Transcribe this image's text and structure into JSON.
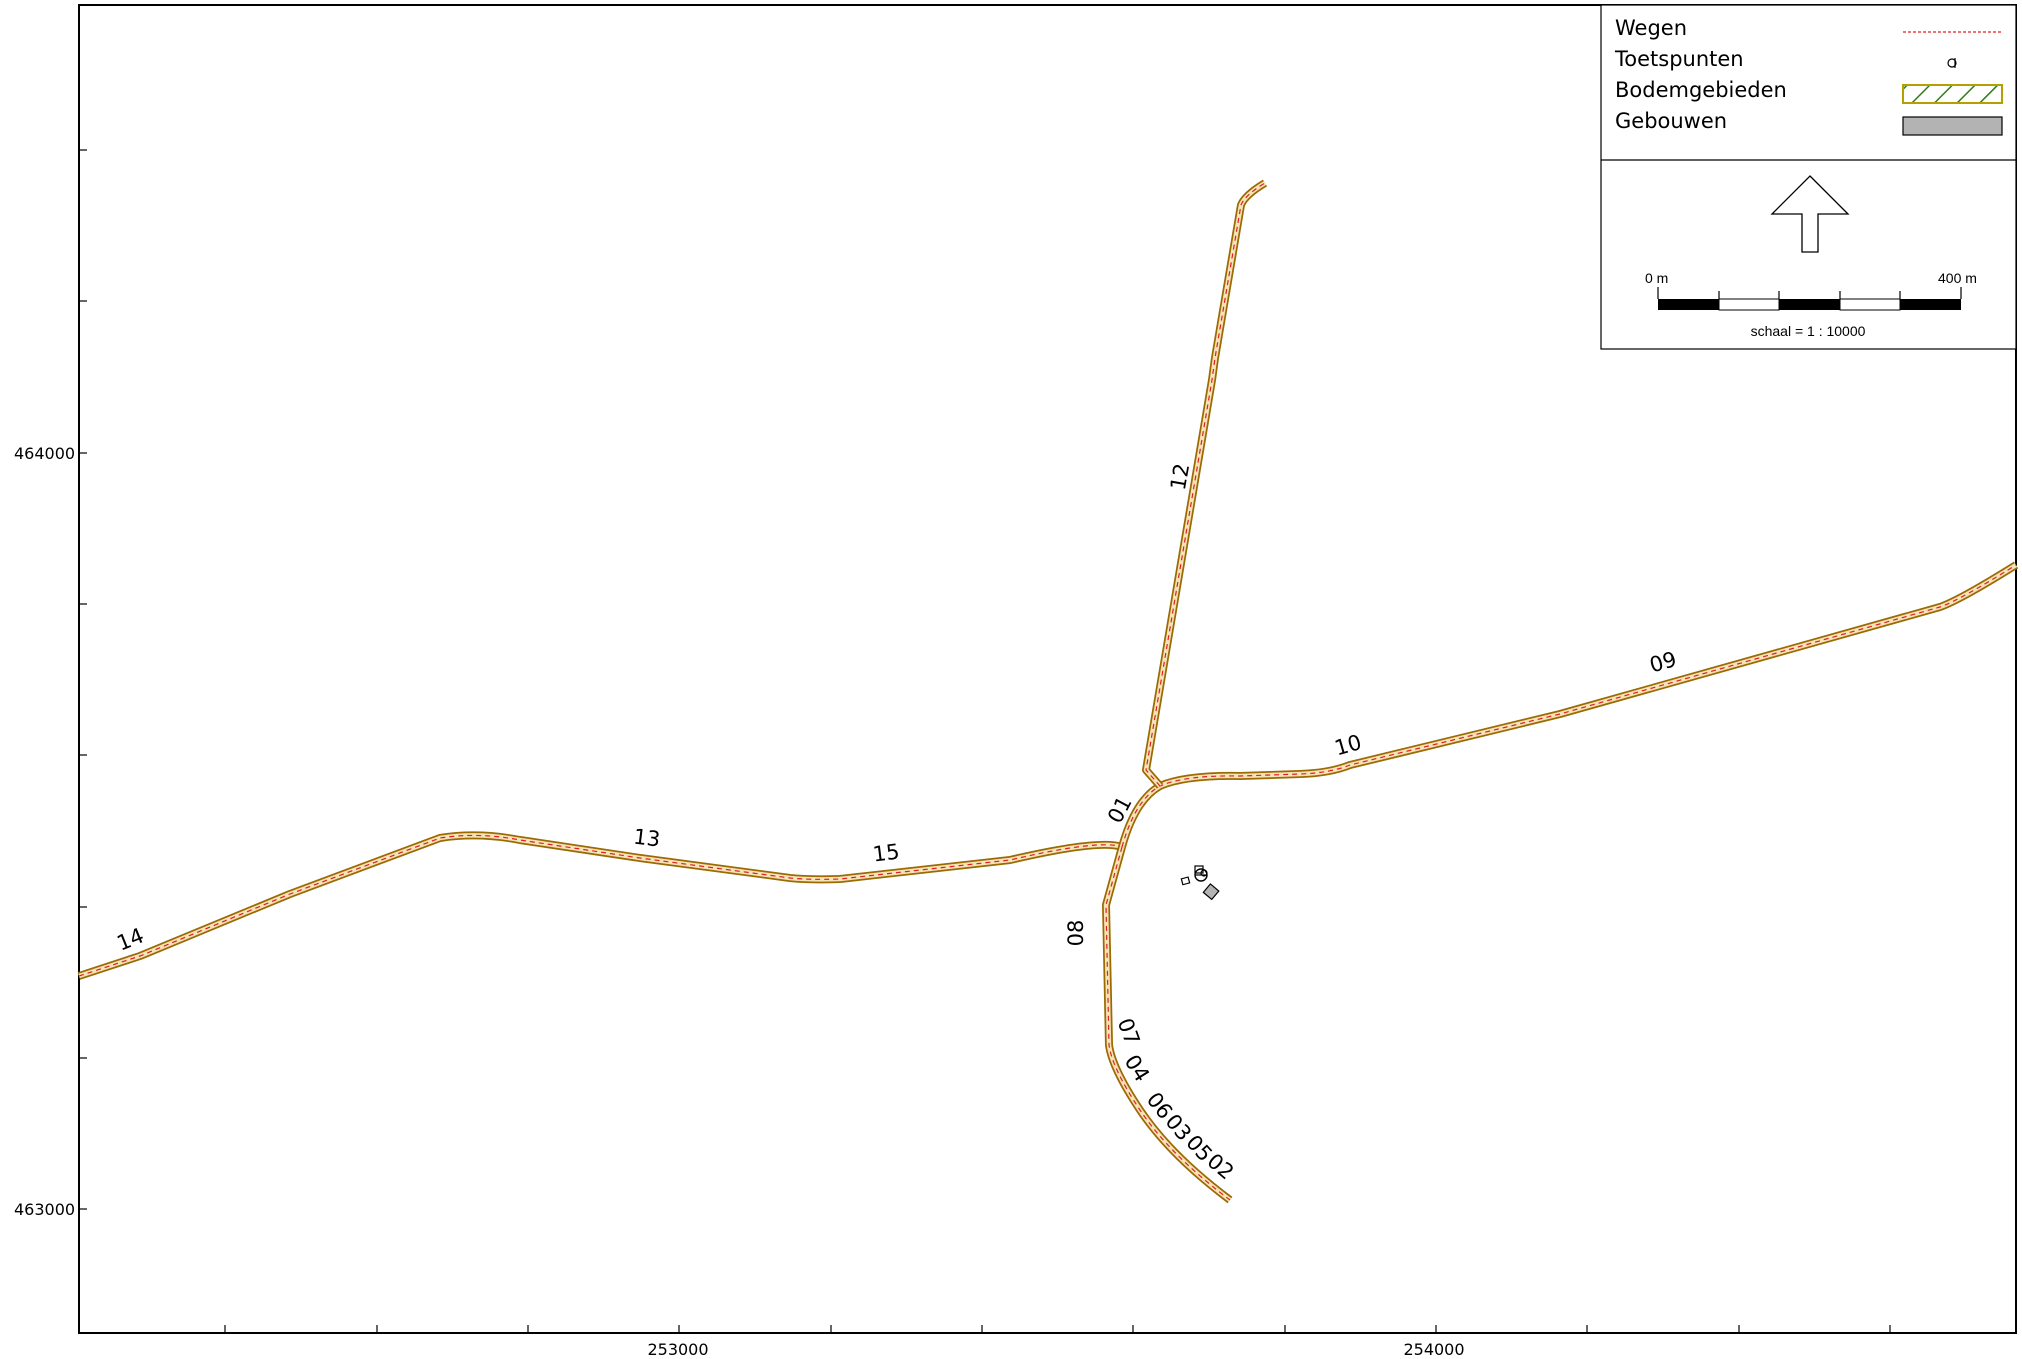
{
  "map": {
    "x_ticks": [
      {
        "value": 253000,
        "label": "253000"
      },
      {
        "value": 254000,
        "label": "254000"
      }
    ],
    "y_ticks": [
      {
        "value": 464000,
        "label": "464000"
      },
      {
        "value": 463000,
        "label": "463000"
      }
    ],
    "road_labels": [
      {
        "text": "14"
      },
      {
        "text": "13"
      },
      {
        "text": "15"
      },
      {
        "text": "01"
      },
      {
        "text": "12"
      },
      {
        "text": "10"
      },
      {
        "text": "09"
      },
      {
        "text": "08"
      },
      {
        "text": "07"
      },
      {
        "text": "04"
      },
      {
        "text": "06"
      },
      {
        "text": "03"
      },
      {
        "text": "05"
      },
      {
        "text": "02"
      }
    ]
  },
  "legend": {
    "items": [
      {
        "label": "Wegen",
        "symbol": "dashed-red-line"
      },
      {
        "label": "Toetspunten",
        "symbol": "test-point-circle"
      },
      {
        "label": "Bodemgebieden",
        "symbol": "green-hatched-area"
      },
      {
        "label": "Gebouwen",
        "symbol": "gray-building"
      }
    ],
    "north_arrow": "north-arrow-icon",
    "scale_bar": {
      "start_label": "0 m",
      "end_label": "400 m",
      "scale_text": "schaal = 1 : 10000"
    }
  },
  "colors": {
    "road_outline": "#9a6b00",
    "road_fill": "#f6e2b8",
    "road_center": "#e02020",
    "soil_hatch": "#2e7d1a",
    "soil_border": "#b5a000",
    "building": "#b3b3b3"
  }
}
